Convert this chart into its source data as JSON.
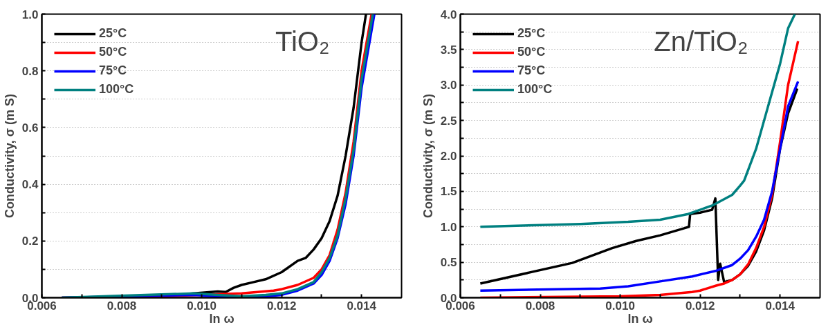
{
  "chart_data": [
    {
      "type": "line",
      "title": "TiO₂",
      "xlabel": "ln ω",
      "ylabel": "Conductivity, σ (m S)",
      "xlim": [
        0.006,
        0.015
      ],
      "ylim": [
        0,
        1.0
      ],
      "xticks": [
        {
          "value": 0.006,
          "label": "0.006"
        },
        {
          "value": 0.007,
          "label": null
        },
        {
          "value": 0.008,
          "label": "0.008"
        },
        {
          "value": 0.009,
          "label": null
        },
        {
          "value": 0.01,
          "label": "0.010"
        },
        {
          "value": 0.011,
          "label": null
        },
        {
          "value": 0.012,
          "label": "0.012"
        },
        {
          "value": 0.013,
          "label": null
        },
        {
          "value": 0.014,
          "label": "0.014"
        }
      ],
      "yticks": [
        {
          "value": 0,
          "label": "0.0"
        },
        {
          "value": 0.1,
          "label": null
        },
        {
          "value": 0.2,
          "label": "0.2"
        },
        {
          "value": 0.3,
          "label": null
        },
        {
          "value": 0.4,
          "label": "0.4"
        },
        {
          "value": 0.5,
          "label": null
        },
        {
          "value": 0.6,
          "label": "0.6"
        },
        {
          "value": 0.7,
          "label": null
        },
        {
          "value": 0.8,
          "label": "0.8"
        },
        {
          "value": 0.9,
          "label": null
        },
        {
          "value": 1,
          "label": "1.0"
        }
      ],
      "grid": "y",
      "legend": "top left",
      "line_style": "solid",
      "marker": "none",
      "series": [
        {
          "name": "25°C",
          "color": "#000000",
          "x": [
            0.0065,
            0.009,
            0.0098,
            0.0104,
            0.0106,
            0.0108,
            0.011,
            0.0113,
            0.0116,
            0.012,
            0.0124,
            0.0126,
            0.0128,
            0.013,
            0.0132,
            0.0134,
            0.0136,
            0.0138,
            0.014,
            0.01411
          ],
          "values": [
            0,
            0.005,
            0.015,
            0.022,
            0.02,
            0.035,
            0.045,
            0.055,
            0.065,
            0.09,
            0.13,
            0.14,
            0.17,
            0.21,
            0.27,
            0.36,
            0.5,
            0.67,
            0.9,
            1.0
          ]
        },
        {
          "name": "50°C",
          "color": "#ff0000",
          "x": [
            0.0065,
            0.009,
            0.0104,
            0.011,
            0.0118,
            0.012,
            0.0124,
            0.0128,
            0.013,
            0.0132,
            0.0134,
            0.0136,
            0.0138,
            0.014,
            0.01425
          ],
          "values": [
            0,
            0.005,
            0.012,
            0.015,
            0.025,
            0.03,
            0.045,
            0.07,
            0.1,
            0.15,
            0.24,
            0.37,
            0.55,
            0.8,
            1.0
          ]
        },
        {
          "name": "75°C",
          "color": "#0000ff",
          "x": [
            0.0065,
            0.0098,
            0.0104,
            0.0112,
            0.012,
            0.0124,
            0.0128,
            0.013,
            0.0132,
            0.0134,
            0.0136,
            0.0138,
            0.014,
            0.01432
          ],
          "values": [
            0,
            0.01,
            0.005,
            0.0,
            0.01,
            0.025,
            0.05,
            0.08,
            0.13,
            0.21,
            0.33,
            0.5,
            0.74,
            1.0
          ]
        },
        {
          "name": "100°C",
          "color": "#008080",
          "x": [
            0.0065,
            0.0098,
            0.0104,
            0.011,
            0.0116,
            0.012,
            0.0124,
            0.0128,
            0.013,
            0.0132,
            0.0134,
            0.0136,
            0.0138,
            0.014,
            0.01428
          ],
          "values": [
            0,
            0.015,
            0.01,
            0.005,
            0.01,
            0.015,
            0.03,
            0.055,
            0.09,
            0.14,
            0.22,
            0.35,
            0.52,
            0.77,
            1.0
          ]
        }
      ]
    },
    {
      "type": "line",
      "title": "Zn/TiO₂",
      "xlabel": "ln ω",
      "ylabel": "Conductivity, σ (m S)",
      "xlim": [
        0.006,
        0.015
      ],
      "ylim": [
        0,
        4.0
      ],
      "xticks": [
        {
          "value": 0.006,
          "label": "0.006"
        },
        {
          "value": 0.007,
          "label": null
        },
        {
          "value": 0.008,
          "label": "0.008"
        },
        {
          "value": 0.009,
          "label": null
        },
        {
          "value": 0.01,
          "label": "0.010"
        },
        {
          "value": 0.011,
          "label": null
        },
        {
          "value": 0.012,
          "label": "0.012"
        },
        {
          "value": 0.013,
          "label": null
        },
        {
          "value": 0.014,
          "label": "0.014"
        }
      ],
      "yticks": [
        {
          "value": 0,
          "label": "0.0"
        },
        {
          "value": 0.25,
          "label": null
        },
        {
          "value": 0.5,
          "label": "0.5"
        },
        {
          "value": 0.75,
          "label": null
        },
        {
          "value": 1,
          "label": "1.0"
        },
        {
          "value": 1.25,
          "label": null
        },
        {
          "value": 1.5,
          "label": "1.5"
        },
        {
          "value": 1.75,
          "label": null
        },
        {
          "value": 2,
          "label": "2.0"
        },
        {
          "value": 2.25,
          "label": null
        },
        {
          "value": 2.5,
          "label": "2.5"
        },
        {
          "value": 2.75,
          "label": null
        },
        {
          "value": 3,
          "label": "3.0"
        },
        {
          "value": 3.25,
          "label": null
        },
        {
          "value": 3.5,
          "label": "3.5"
        },
        {
          "value": 3.75,
          "label": null
        },
        {
          "value": 4,
          "label": "4.0"
        }
      ],
      "grid": "y",
      "legend": "top left",
      "line_style": "solid",
      "marker": "none",
      "series": [
        {
          "name": "25°C",
          "color": "#000000",
          "x": [
            0.0065,
            0.0088,
            0.0098,
            0.0104,
            0.011,
            0.0116,
            0.01172,
            0.01175,
            0.012,
            0.0123,
            0.01238,
            0.01245,
            0.0125,
            0.0126,
            0.0128,
            0.013,
            0.0132,
            0.0134,
            0.0136,
            0.0138,
            0.014,
            0.0142,
            0.01443
          ],
          "values": [
            0.2,
            0.49,
            0.7,
            0.8,
            0.88,
            0.98,
            1.0,
            1.18,
            1.2,
            1.24,
            1.4,
            0.25,
            0.48,
            0.22,
            0.25,
            0.33,
            0.45,
            0.65,
            0.95,
            1.4,
            2.1,
            2.6,
            2.95
          ]
        },
        {
          "name": "50°C",
          "color": "#ff0000",
          "x": [
            0.0065,
            0.01,
            0.011,
            0.0118,
            0.012,
            0.0124,
            0.0126,
            0.0128,
            0.013,
            0.0132,
            0.0134,
            0.0136,
            0.0138,
            0.014,
            0.0142,
            0.01445
          ],
          "values": [
            0.0,
            0.02,
            0.04,
            0.08,
            0.1,
            0.17,
            0.2,
            0.25,
            0.33,
            0.47,
            0.7,
            1.0,
            1.45,
            2.2,
            3.0,
            3.62
          ]
        },
        {
          "name": "75°C",
          "color": "#0000ff",
          "x": [
            0.0065,
            0.0095,
            0.0102,
            0.011,
            0.0118,
            0.0124,
            0.0128,
            0.013,
            0.0132,
            0.0134,
            0.0136,
            0.0138,
            0.014,
            0.0142,
            0.01445
          ],
          "values": [
            0.1,
            0.13,
            0.16,
            0.23,
            0.3,
            0.38,
            0.46,
            0.55,
            0.67,
            0.86,
            1.1,
            1.5,
            2.1,
            2.7,
            3.05
          ]
        },
        {
          "name": "100°C",
          "color": "#008080",
          "x": [
            0.0065,
            0.009,
            0.0102,
            0.011,
            0.0117,
            0.0123,
            0.0128,
            0.013,
            0.0131,
            0.0134,
            0.0136,
            0.0138,
            0.014,
            0.0142,
            0.01437
          ],
          "values": [
            1.0,
            1.04,
            1.07,
            1.1,
            1.18,
            1.3,
            1.45,
            1.58,
            1.65,
            2.1,
            2.5,
            2.9,
            3.3,
            3.8,
            4.0
          ]
        }
      ]
    }
  ]
}
